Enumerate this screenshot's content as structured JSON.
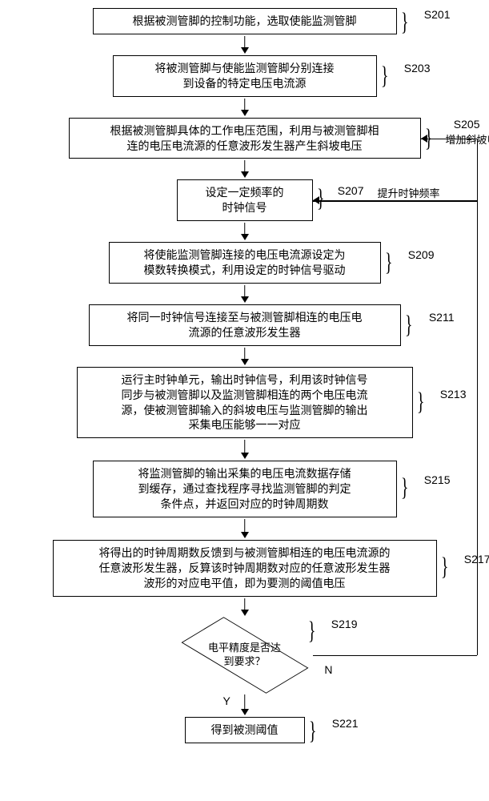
{
  "steps": {
    "s201": {
      "label": "S201",
      "text": "根据被测管脚的控制功能，选取使能监测管脚"
    },
    "s203": {
      "label": "S203",
      "text": "将被测管脚与使能监测管脚分别连接\n到设备的特定电压电流源"
    },
    "s205": {
      "label": "S205",
      "text": "根据被测管脚具体的工作电压范围，利用与被测管脚相\n连的电压电流源的任意波形发生器产生斜坡电压",
      "side_note": "增加斜坡电压"
    },
    "s207": {
      "label": "S207",
      "text": "设定一定频率的\n时钟信号",
      "side_note": "提升时钟频率"
    },
    "s209": {
      "label": "S209",
      "text": "将使能监测管脚连接的电压电流源设定为\n模数转换模式，利用设定的时钟信号驱动"
    },
    "s211": {
      "label": "S211",
      "text": "将同一时钟信号连接至与被测管脚相连的电压电\n流源的任意波形发生器"
    },
    "s213": {
      "label": "S213",
      "text": "运行主时钟单元，输出时钟信号，利用该时钟信号\n同步与被测管脚以及监测管脚相连的两个电压电流\n源，使被测管脚输入的斜坡电压与监测管脚的输出\n采集电压能够一一对应"
    },
    "s215": {
      "label": "S215",
      "text": "将监测管脚的输出采集的电压电流数据存储\n到缓存，通过查找程序寻找监测管脚的判定\n条件点，并返回对应的时钟周期数"
    },
    "s217": {
      "label": "S217",
      "text": "将得出的时钟周期数反馈到与被测管脚相连的电压电流源的\n任意波形发生器，反算该时钟周期数对应的任意波形发生器\n波形的对应电平值，即为要测的阈值电压"
    },
    "s219": {
      "label": "S219",
      "text": "电平精度是否达\n到要求？"
    },
    "s221": {
      "label": "S221",
      "text": "得到被测阈值"
    }
  },
  "branch": {
    "yes": "Y",
    "no": "N"
  },
  "style": {
    "border_color": "#000000",
    "bg_color": "#ffffff",
    "font_size_box": 14,
    "font_size_label": 14
  }
}
